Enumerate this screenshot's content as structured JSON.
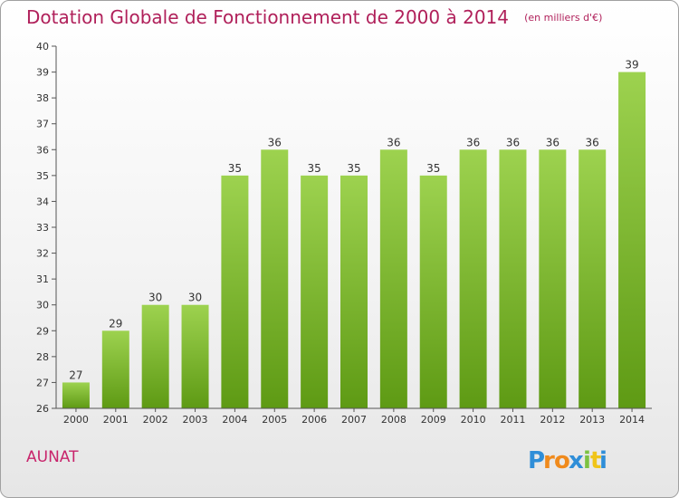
{
  "title": "Dotation Globale de Fonctionnement de 2000 à 2014",
  "unit_label": "(en milliers d'€)",
  "commune": "AUNAT",
  "logo_text": "Proxiti",
  "colors": {
    "title": "#b0205a",
    "bar_top": "#9dd24f",
    "bar_bottom": "#5e9a14",
    "commune": "#c8246b"
  },
  "chart_data": {
    "type": "bar",
    "title": "Dotation Globale de Fonctionnement de 2000 à 2014",
    "categories": [
      "2000",
      "2001",
      "2002",
      "2003",
      "2004",
      "2005",
      "2006",
      "2007",
      "2008",
      "2009",
      "2010",
      "2011",
      "2012",
      "2013",
      "2014"
    ],
    "values": [
      27,
      29,
      30,
      30,
      35,
      36,
      35,
      35,
      36,
      35,
      36,
      36,
      36,
      36,
      39
    ],
    "ylim": [
      26,
      40
    ],
    "yticks": [
      26,
      27,
      28,
      29,
      30,
      31,
      32,
      33,
      34,
      35,
      36,
      37,
      38,
      39,
      40
    ],
    "grid": false,
    "legend": "none"
  }
}
